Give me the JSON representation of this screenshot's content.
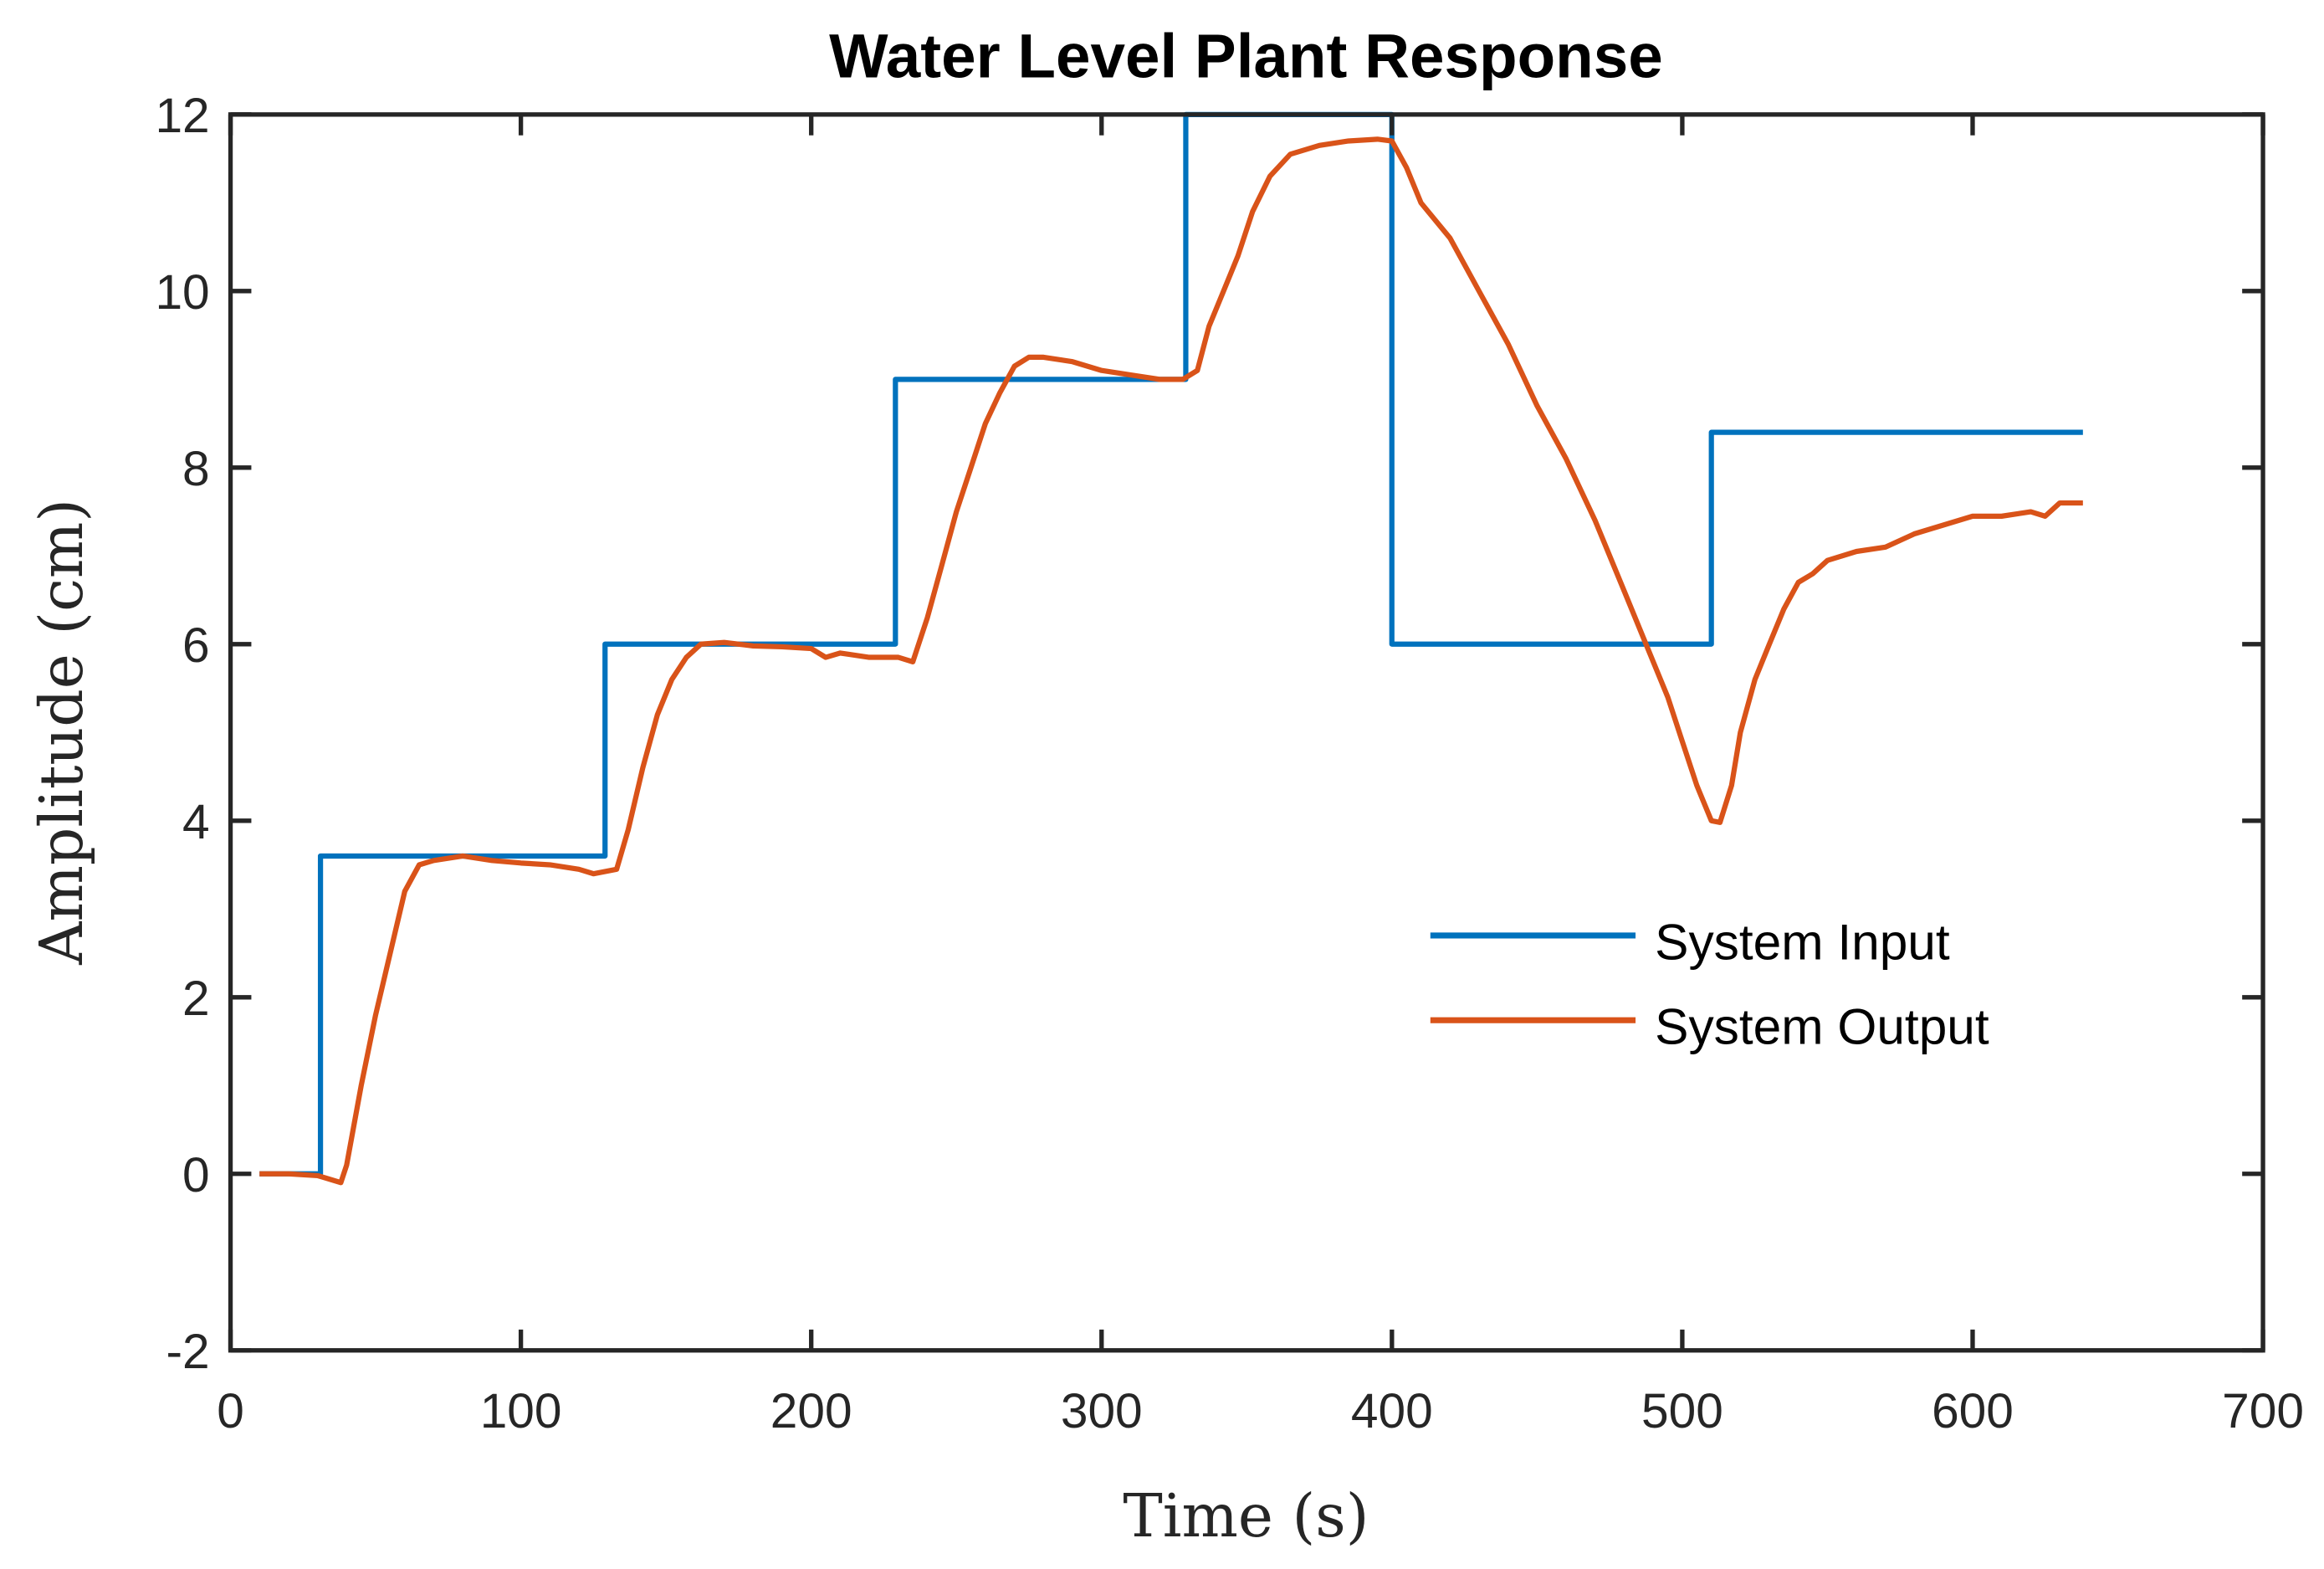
{
  "chart_data": {
    "type": "line",
    "title": "Water Level Plant Response",
    "xlabel": "Time (s)",
    "ylabel": "Amplitude (cm)",
    "xlim": [
      0,
      700
    ],
    "ylim": [
      -2,
      12
    ],
    "xticks": [
      "0",
      "100",
      "200",
      "300",
      "400",
      "500",
      "600",
      "700"
    ],
    "yticks": [
      "-2",
      "0",
      "2",
      "4",
      "6",
      "8",
      "10",
      "12"
    ],
    "grid": false,
    "legend_position": "right",
    "series": [
      {
        "name": "System Input",
        "color": "#0072BD",
        "x": [
          10,
          31,
          31,
          129,
          129,
          229,
          229,
          329,
          329,
          400,
          400,
          510,
          510,
          638
        ],
        "y": [
          0,
          0,
          3.6,
          3.6,
          6,
          6,
          9,
          9,
          12,
          12,
          6,
          6,
          8.4,
          8.4
        ]
      },
      {
        "name": "System Output",
        "color": "#D95319",
        "x": [
          10,
          20,
          30,
          38,
          40,
          45,
          50,
          55,
          60,
          65,
          70,
          80,
          90,
          100,
          110,
          120,
          125,
          133,
          137,
          142,
          147,
          152,
          157,
          162,
          170,
          180,
          190,
          200,
          205,
          210,
          220,
          230,
          235,
          240,
          245,
          250,
          255,
          260,
          265,
          270,
          275,
          280,
          290,
          300,
          310,
          320,
          328,
          333,
          337,
          342,
          347,
          352,
          358,
          365,
          375,
          385,
          395,
          400,
          405,
          410,
          420,
          430,
          440,
          450,
          460,
          470,
          480,
          490,
          495,
          500,
          505,
          510,
          513,
          517,
          520,
          525,
          530,
          535,
          540,
          545,
          550,
          560,
          570,
          580,
          590,
          600,
          610,
          620,
          625,
          630,
          638
        ],
        "y": [
          0,
          0,
          -0.02,
          -0.1,
          0.1,
          1.0,
          1.8,
          2.5,
          3.2,
          3.5,
          3.55,
          3.6,
          3.55,
          3.52,
          3.5,
          3.45,
          3.4,
          3.45,
          3.9,
          4.6,
          5.2,
          5.6,
          5.85,
          6.0,
          6.02,
          5.98,
          5.97,
          5.95,
          5.85,
          5.9,
          5.85,
          5.85,
          5.8,
          6.3,
          6.9,
          7.5,
          8.0,
          8.5,
          8.85,
          9.15,
          9.25,
          9.25,
          9.2,
          9.1,
          9.05,
          9.0,
          9.0,
          9.1,
          9.6,
          10.0,
          10.4,
          10.9,
          11.3,
          11.55,
          11.65,
          11.7,
          11.72,
          11.7,
          11.4,
          11.0,
          10.6,
          10.0,
          9.4,
          8.7,
          8.1,
          7.4,
          6.6,
          5.8,
          5.4,
          4.9,
          4.4,
          4.0,
          3.98,
          4.4,
          5.0,
          5.6,
          6.0,
          6.4,
          6.7,
          6.8,
          6.95,
          7.05,
          7.1,
          7.25,
          7.35,
          7.45,
          7.45,
          7.5,
          7.45,
          7.6,
          7.6
        ]
      }
    ]
  }
}
